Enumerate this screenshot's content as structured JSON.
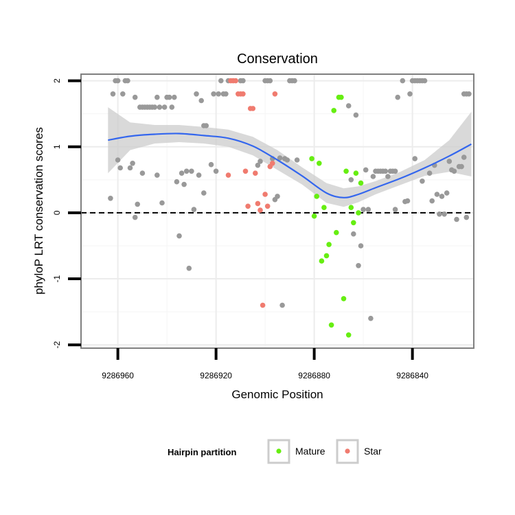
{
  "chart_data": {
    "type": "scatter",
    "title": "Conservation",
    "xlabel": "Genomic Position",
    "ylabel": "phyloP LRT conservation scores",
    "x_reversed": true,
    "xlim": [
      9286975,
      9286815
    ],
    "ylim": [
      -2.05,
      2.1
    ],
    "x_ticks": [
      9286960,
      9286920,
      9286880,
      9286840
    ],
    "x_tick_labels": [
      "9286960",
      "9286920",
      "9286880",
      "9286840"
    ],
    "y_ticks": [
      -2,
      -1,
      0,
      1,
      2
    ],
    "y_tick_labels": [
      "-2",
      "-1",
      "0",
      "1",
      "2"
    ],
    "reference_line": {
      "y": 0,
      "style": "dashed"
    },
    "grid": true,
    "legend": {
      "title": "Hairpin partition",
      "position": "bottom",
      "entries": [
        {
          "label": "Mature",
          "color": "#66ee11"
        },
        {
          "label": "Star",
          "color": "#f07b6f"
        }
      ]
    },
    "colors": {
      "other": "#999999",
      "mature": "#66ee11",
      "star": "#f07b6f",
      "smooth": "#3366ee",
      "ribbon": "#cccccc"
    },
    "series": [
      {
        "name": "Other",
        "points": [
          [
            9286963,
            0.22
          ],
          [
            9286962,
            1.8
          ],
          [
            9286961,
            2.0
          ],
          [
            9286960,
            2.0
          ],
          [
            9286960,
            0.8
          ],
          [
            9286959,
            0.68
          ],
          [
            9286958,
            1.8
          ],
          [
            9286957,
            2.0
          ],
          [
            9286956,
            2.0
          ],
          [
            9286955,
            0.68
          ],
          [
            9286954,
            0.75
          ],
          [
            9286953,
            -0.07
          ],
          [
            9286953,
            1.75
          ],
          [
            9286952,
            0.13
          ],
          [
            9286951,
            1.6
          ],
          [
            9286950,
            1.6
          ],
          [
            9286950,
            0.6
          ],
          [
            9286949,
            1.6
          ],
          [
            9286948,
            1.6
          ],
          [
            9286947,
            1.6
          ],
          [
            9286946,
            1.6
          ],
          [
            9286945,
            1.6
          ],
          [
            9286944,
            0.57
          ],
          [
            9286944,
            1.75
          ],
          [
            9286943,
            1.6
          ],
          [
            9286942,
            0.15
          ],
          [
            9286941,
            1.6
          ],
          [
            9286940,
            1.75
          ],
          [
            9286939,
            1.75
          ],
          [
            9286938,
            1.6
          ],
          [
            9286937,
            1.75
          ],
          [
            9286936,
            0.47
          ],
          [
            9286935,
            -0.35
          ],
          [
            9286934,
            0.6
          ],
          [
            9286933,
            0.43
          ],
          [
            9286932,
            0.63
          ],
          [
            9286931,
            -0.84
          ],
          [
            9286930,
            0.63
          ],
          [
            9286929,
            0.05
          ],
          [
            9286928,
            1.8
          ],
          [
            9286927,
            0.57
          ],
          [
            9286926,
            1.7
          ],
          [
            9286925,
            1.32
          ],
          [
            9286925,
            0.3
          ],
          [
            9286924,
            1.32
          ],
          [
            9286922,
            0.73
          ],
          [
            9286921,
            1.8
          ],
          [
            9286920,
            0.63
          ],
          [
            9286919,
            1.8
          ],
          [
            9286918,
            2.0
          ],
          [
            9286917,
            1.8
          ],
          [
            9286916,
            1.8
          ],
          [
            9286915,
            2.0
          ],
          [
            9286910,
            2.0
          ],
          [
            9286909,
            2.0
          ],
          [
            9286903,
            0.72
          ],
          [
            9286902,
            0.78
          ],
          [
            9286900,
            2.0
          ],
          [
            9286899,
            2.0
          ],
          [
            9286898,
            2.0
          ],
          [
            9286897,
            0.82
          ],
          [
            9286896,
            0.2
          ],
          [
            9286895,
            0.25
          ],
          [
            9286894,
            0.83
          ],
          [
            9286893,
            -1.4
          ],
          [
            9286892,
            0.82
          ],
          [
            9286891,
            0.8
          ],
          [
            9286890,
            2.0
          ],
          [
            9286889,
            2.0
          ],
          [
            9286888,
            2.0
          ],
          [
            9286887,
            0.8
          ],
          [
            9286866,
            1.62
          ],
          [
            9286865,
            0.5
          ],
          [
            9286864,
            -0.32
          ],
          [
            9286863,
            1.48
          ],
          [
            9286862,
            -0.8
          ],
          [
            9286861,
            -0.5
          ],
          [
            9286860,
            0.05
          ],
          [
            9286859,
            0.65
          ],
          [
            9286858,
            0.05
          ],
          [
            9286857,
            -1.6
          ],
          [
            9286856,
            0.55
          ],
          [
            9286855,
            0.63
          ],
          [
            9286854,
            0.63
          ],
          [
            9286853,
            0.63
          ],
          [
            9286852,
            0.63
          ],
          [
            9286851,
            0.63
          ],
          [
            9286850,
            0.55
          ],
          [
            9286849,
            0.63
          ],
          [
            9286848,
            0.63
          ],
          [
            9286847,
            0.63
          ],
          [
            9286847,
            0.05
          ],
          [
            9286846,
            1.75
          ],
          [
            9286844,
            2.0
          ],
          [
            9286843,
            0.17
          ],
          [
            9286842,
            0.18
          ],
          [
            9286841,
            1.8
          ],
          [
            9286840,
            2.0
          ],
          [
            9286839,
            0.82
          ],
          [
            9286839,
            2.0
          ],
          [
            9286838,
            2.0
          ],
          [
            9286837,
            2.0
          ],
          [
            9286836,
            0.48
          ],
          [
            9286836,
            2.0
          ],
          [
            9286835,
            2.0
          ],
          [
            9286833,
            0.6
          ],
          [
            9286832,
            0.18
          ],
          [
            9286831,
            0.72
          ],
          [
            9286830,
            0.28
          ],
          [
            9286829,
            -0.02
          ],
          [
            9286828,
            0.25
          ],
          [
            9286827,
            -0.02
          ],
          [
            9286826,
            0.3
          ],
          [
            9286825,
            0.78
          ],
          [
            9286824,
            0.65
          ],
          [
            9286823,
            0.63
          ],
          [
            9286822,
            -0.1
          ],
          [
            9286821,
            0.7
          ],
          [
            9286820,
            0.7
          ],
          [
            9286819,
            0.84
          ],
          [
            9286819,
            1.8
          ],
          [
            9286818,
            -0.07
          ],
          [
            9286818,
            1.8
          ],
          [
            9286817,
            1.8
          ]
        ]
      },
      {
        "name": "Mature",
        "points": [
          [
            9286881,
            0.82
          ],
          [
            9286880,
            -0.05
          ],
          [
            9286879,
            0.25
          ],
          [
            9286878,
            0.75
          ],
          [
            9286877,
            -0.73
          ],
          [
            9286876,
            0.08
          ],
          [
            9286875,
            -0.65
          ],
          [
            9286874,
            -0.48
          ],
          [
            9286873,
            -1.7
          ],
          [
            9286872,
            1.55
          ],
          [
            9286871,
            -0.3
          ],
          [
            9286870,
            1.75
          ],
          [
            9286869,
            1.75
          ],
          [
            9286868,
            -1.3
          ],
          [
            9286867,
            0.63
          ],
          [
            9286866,
            -1.85
          ],
          [
            9286865,
            0.08
          ],
          [
            9286864,
            -0.15
          ],
          [
            9286863,
            0.6
          ],
          [
            9286862,
            0.0
          ],
          [
            9286861,
            0.45
          ]
        ]
      },
      {
        "name": "Star",
        "points": [
          [
            9286915,
            0.57
          ],
          [
            9286914,
            2.0
          ],
          [
            9286913,
            2.0
          ],
          [
            9286912,
            2.0
          ],
          [
            9286911,
            1.8
          ],
          [
            9286910,
            1.8
          ],
          [
            9286909,
            1.8
          ],
          [
            9286908,
            0.63
          ],
          [
            9286907,
            0.1
          ],
          [
            9286906,
            1.58
          ],
          [
            9286905,
            1.58
          ],
          [
            9286904,
            0.6
          ],
          [
            9286903,
            0.14
          ],
          [
            9286902,
            0.04
          ],
          [
            9286901,
            -1.4
          ],
          [
            9286900,
            0.28
          ],
          [
            9286899,
            0.1
          ],
          [
            9286898,
            0.7
          ],
          [
            9286897,
            0.75
          ],
          [
            9286896,
            1.8
          ]
        ]
      }
    ],
    "smooth": {
      "x": [
        9286964,
        9286955,
        9286945,
        9286935,
        9286925,
        9286915,
        9286905,
        9286895,
        9286885,
        9286875,
        9286868,
        9286862,
        9286855,
        9286845,
        9286835,
        9286825,
        9286816
      ],
      "y": [
        1.1,
        1.16,
        1.19,
        1.2,
        1.17,
        1.13,
        1.01,
        0.8,
        0.56,
        0.3,
        0.23,
        0.28,
        0.38,
        0.52,
        0.68,
        0.86,
        1.04
      ],
      "lower": [
        0.6,
        0.95,
        1.05,
        1.07,
        1.05,
        1.0,
        0.87,
        0.65,
        0.43,
        0.15,
        0.09,
        0.16,
        0.28,
        0.42,
        0.56,
        0.62,
        0.55
      ],
      "upper": [
        1.6,
        1.37,
        1.33,
        1.33,
        1.3,
        1.26,
        1.15,
        0.95,
        0.69,
        0.45,
        0.37,
        0.4,
        0.48,
        0.62,
        0.8,
        1.1,
        1.53
      ]
    }
  }
}
